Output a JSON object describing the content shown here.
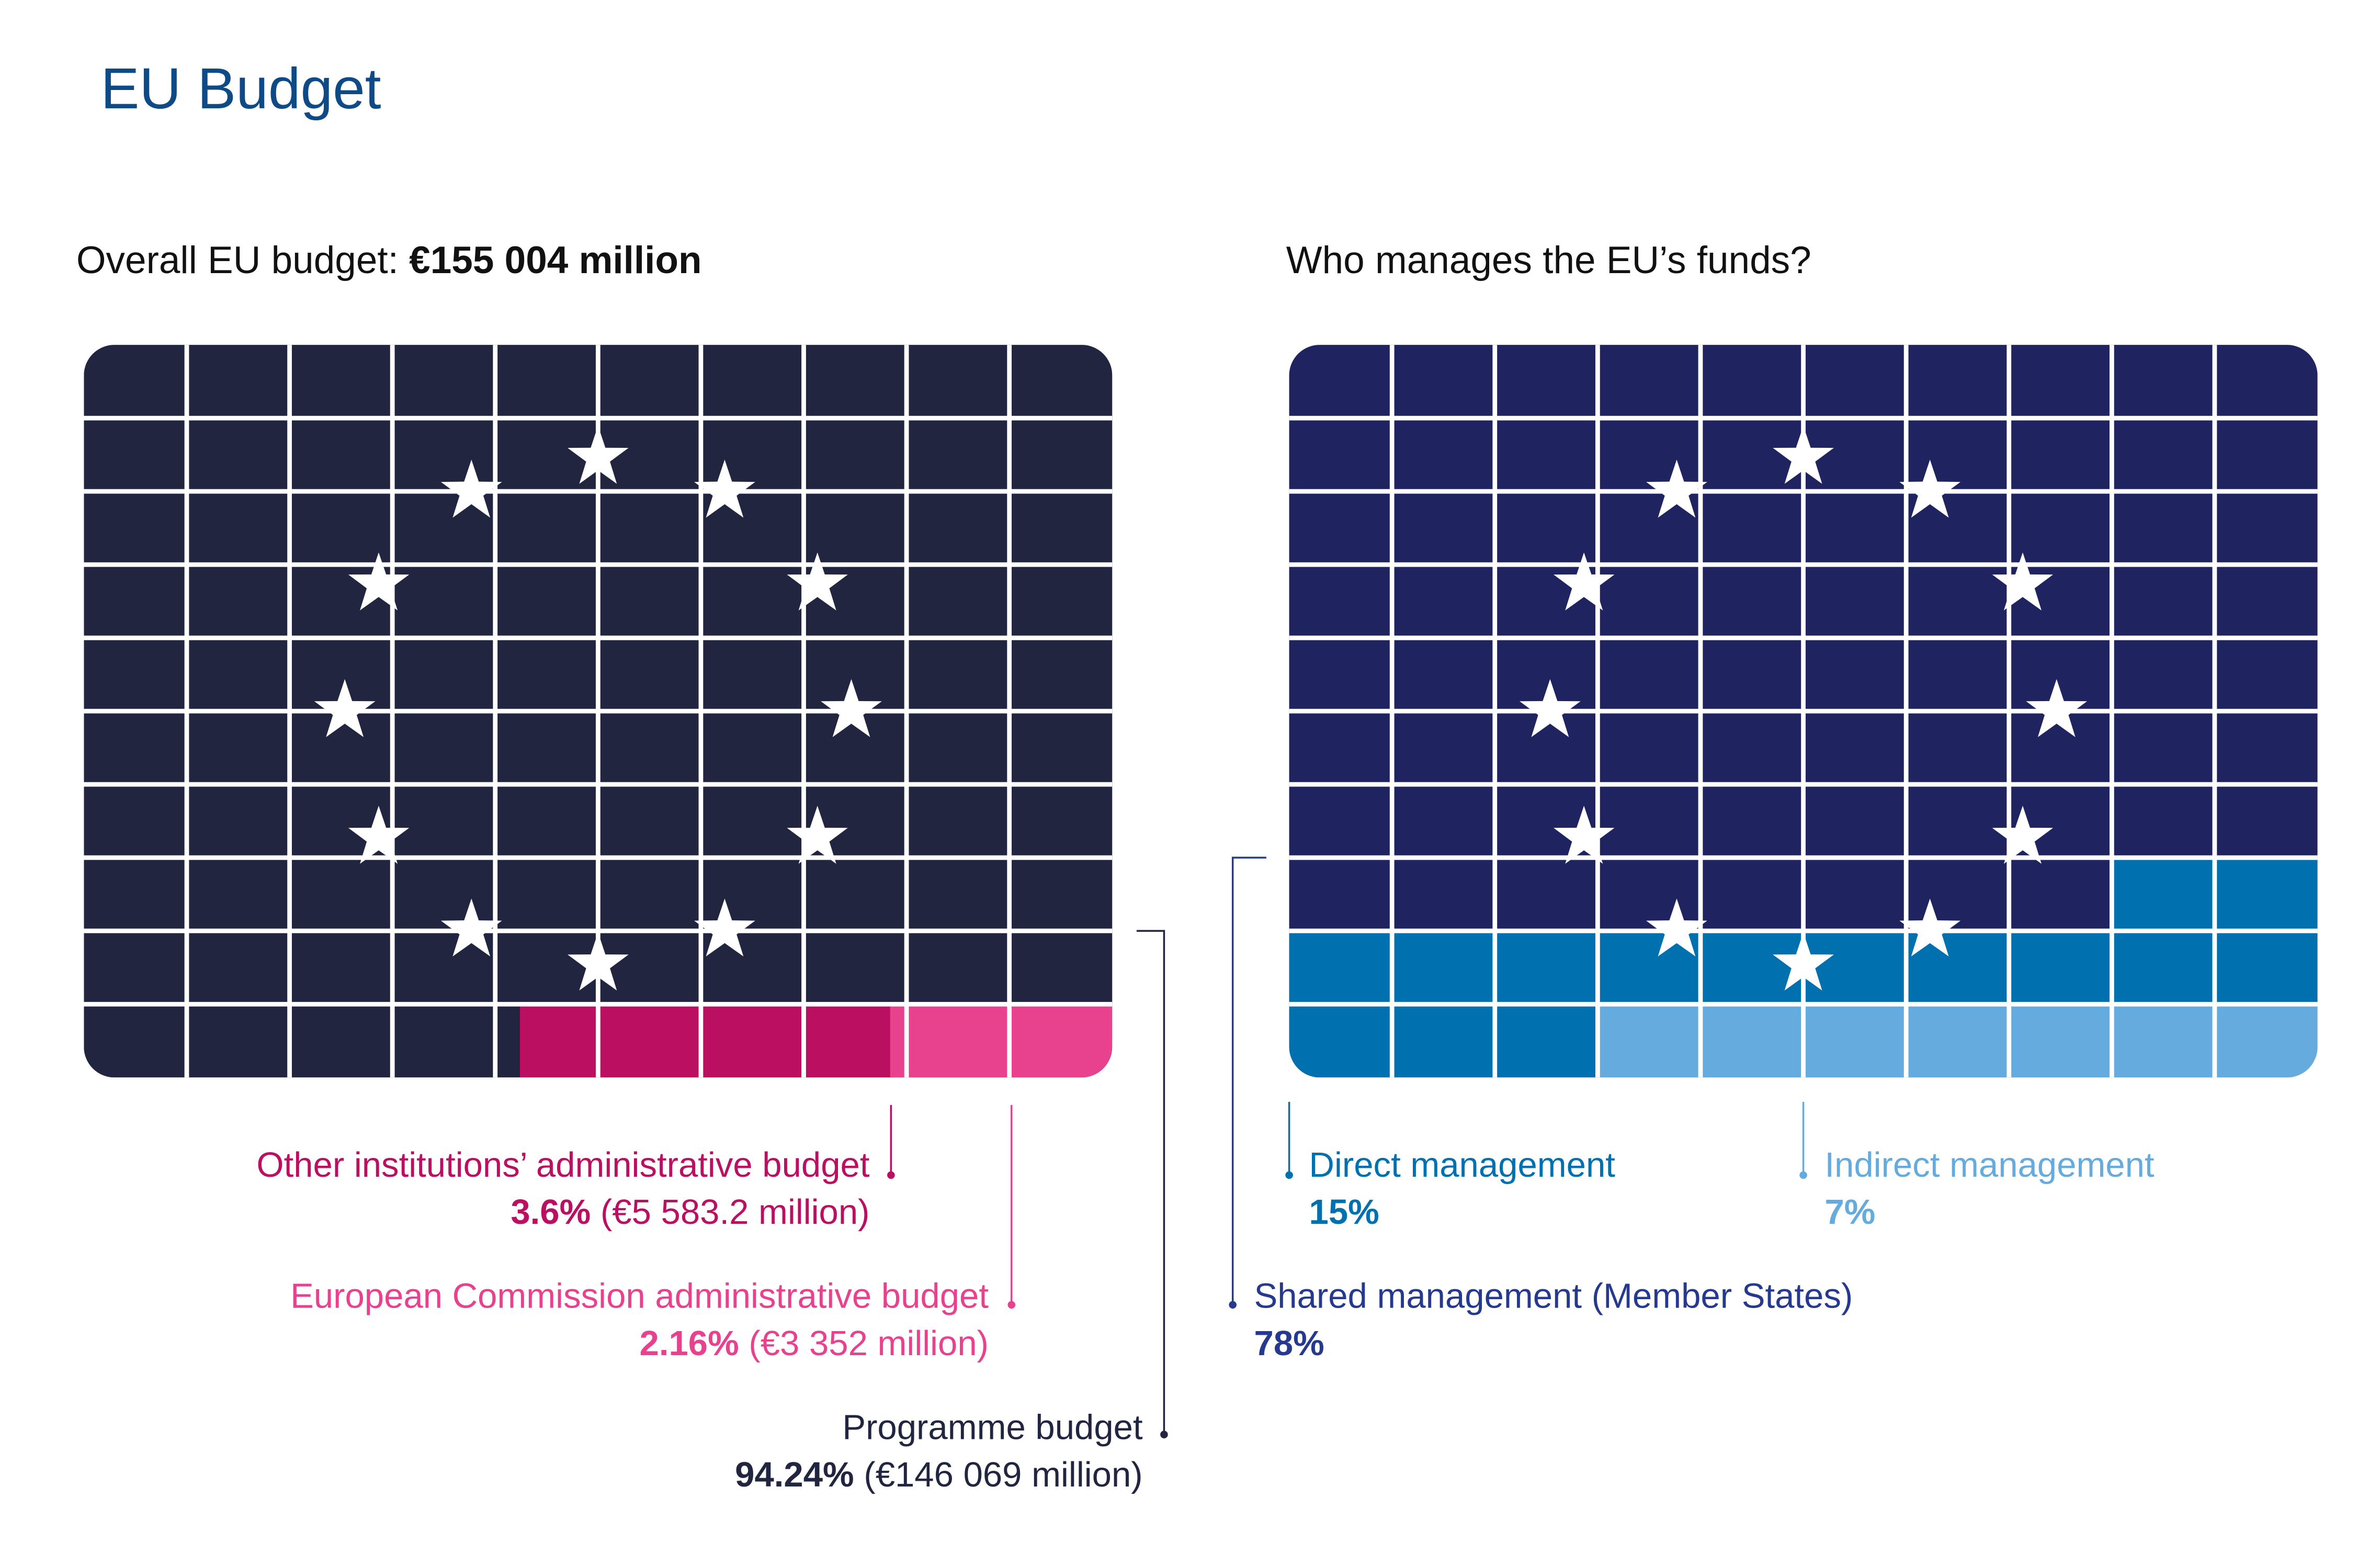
{
  "title": "EU Budget",
  "chart_data": [
    {
      "type": "waffle",
      "title_prefix": "Overall EU budget: ",
      "title_value": "€155 004 million",
      "grid": [
        10,
        10
      ],
      "base_color": "#21253f",
      "series": [
        {
          "name": "Programme budget",
          "value": 94.24,
          "amount": "€146 069 million",
          "pct_label": "94.24%",
          "amount_label": "(€146 069 million)",
          "color": "#21253f"
        },
        {
          "name": "Other institutions’ administrative budget",
          "value": 3.6,
          "amount": "€5 583.2 million",
          "pct_label": "3.6%",
          "amount_label": "(€5 583.2 million)",
          "color": "#bb0f62"
        },
        {
          "name": "European Commission administrative budget",
          "value": 2.16,
          "amount": "€3 352 million",
          "pct_label": "2.16%",
          "amount_label": "(€3 352 million)",
          "color": "#e8418e"
        }
      ]
    },
    {
      "type": "waffle",
      "title": "Who manages the EU’s funds?",
      "grid": [
        10,
        10
      ],
      "base_color": "#1f2460",
      "series": [
        {
          "name": "Shared management (Member States)",
          "value": 78,
          "pct_label": "78%",
          "color": "#1f2460",
          "text_color": "#253a8e"
        },
        {
          "name": "Direct management",
          "value": 15,
          "pct_label": "15%",
          "color": "#0070ae",
          "text_color": "#0070ae"
        },
        {
          "name": "Indirect management",
          "value": 7,
          "pct_label": "7%",
          "color": "#65abdd",
          "text_color": "#65abdd"
        }
      ]
    }
  ],
  "decoration": {
    "stars": 12,
    "star_color": "#ffffff",
    "gridline_color": "#ffffff"
  }
}
